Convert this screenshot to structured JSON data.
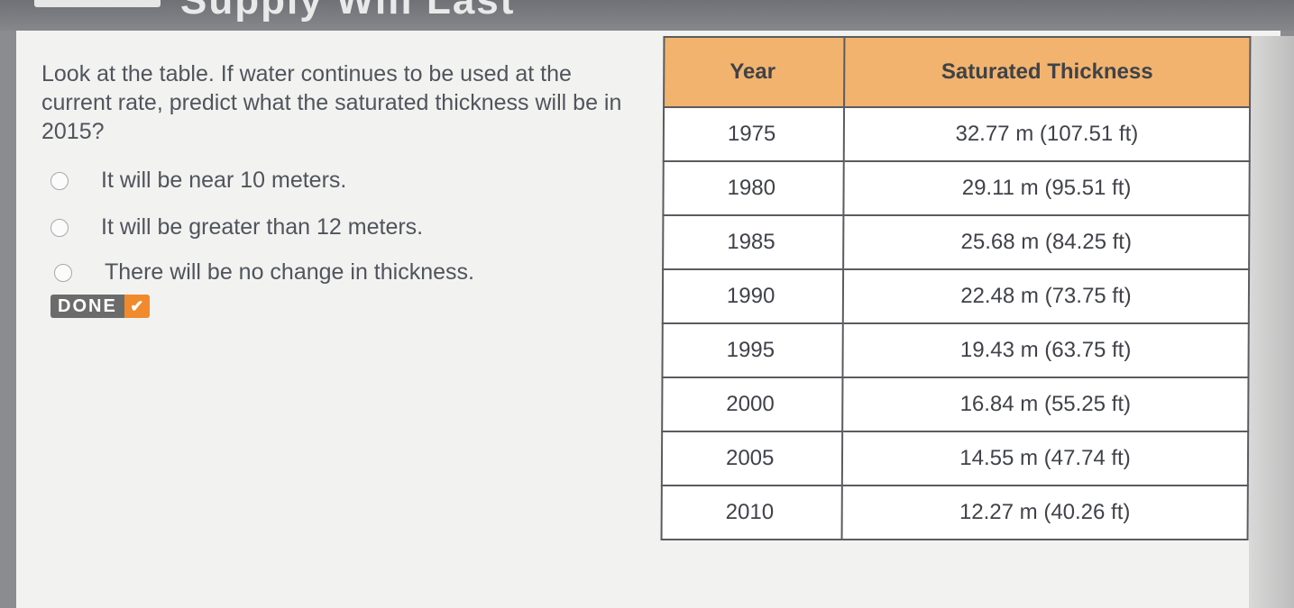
{
  "header": {
    "title_fragment": "Supply Will Last"
  },
  "question": {
    "prompt": "Look at the table. If water continues to be used at the current rate, predict what the saturated thickness will be in 2015?",
    "options": [
      "It will be near 10 meters.",
      "It will be greater than 12 meters.",
      "There will be no change in thickness."
    ],
    "done_label": "DONE",
    "done_icon": "checkmark-icon"
  },
  "table": {
    "headers": [
      "Year",
      "Saturated Thickness"
    ],
    "rows": [
      [
        "1975",
        "32.77 m (107.51 ft)"
      ],
      [
        "1980",
        "29.11 m (95.51 ft)"
      ],
      [
        "1985",
        "25.68 m (84.25 ft)"
      ],
      [
        "1990",
        "22.48 m (73.75 ft)"
      ],
      [
        "1995",
        "19.43 m (63.75 ft)"
      ],
      [
        "2000",
        "16.84 m (55.25 ft)"
      ],
      [
        "2005",
        "14.55 m (47.74 ft)"
      ],
      [
        "2010",
        "12.27 m (40.26 ft)"
      ]
    ]
  },
  "colors": {
    "header_fill": "#f1b36e",
    "done_accent": "#f08a2c",
    "text": "#50545c"
  }
}
